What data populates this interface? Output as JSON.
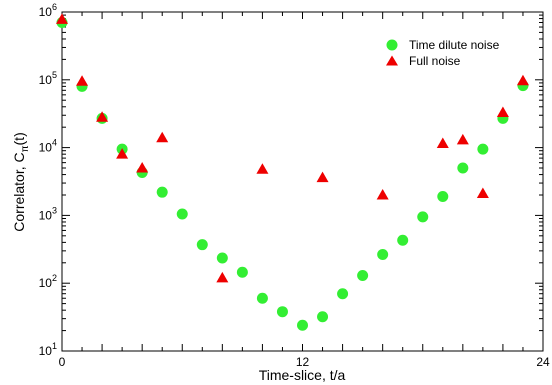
{
  "chart_data": {
    "type": "scatter",
    "xlabel": "Time-slice, t/a",
    "ylabel_prefix": "Correlator, C",
    "ylabel_subscript": "π",
    "ylabel_suffix": "(t)",
    "xlim": [
      0,
      24
    ],
    "ylim": [
      10,
      1000000
    ],
    "yscale": "log",
    "grid": false,
    "legend_position": "top-right",
    "x_ticks": [
      0,
      12,
      24
    ],
    "y_tick_labels": [
      {
        "base": "10",
        "exp": "1"
      },
      {
        "base": "10",
        "exp": "2"
      },
      {
        "base": "10",
        "exp": "3"
      },
      {
        "base": "10",
        "exp": "4"
      },
      {
        "base": "10",
        "exp": "5"
      },
      {
        "base": "10",
        "exp": "6"
      }
    ],
    "series": [
      {
        "name": "Time dilute noise",
        "marker": "circle",
        "color": "#33ee33",
        "points": [
          [
            0,
            700000
          ],
          [
            1,
            80000
          ],
          [
            2,
            27000
          ],
          [
            3,
            9500
          ],
          [
            4,
            4300
          ],
          [
            5,
            2200
          ],
          [
            6,
            1050
          ],
          [
            7,
            370
          ],
          [
            8,
            235
          ],
          [
            9,
            145
          ],
          [
            10,
            60
          ],
          [
            11,
            38
          ],
          [
            12,
            24
          ],
          [
            13,
            32
          ],
          [
            14,
            70
          ],
          [
            15,
            130
          ],
          [
            16,
            265
          ],
          [
            17,
            430
          ],
          [
            18,
            950
          ],
          [
            19,
            1900
          ],
          [
            20,
            5000
          ],
          [
            21,
            9500
          ],
          [
            22,
            27000
          ],
          [
            23,
            82000
          ]
        ]
      },
      {
        "name": "Full noise",
        "marker": "triangle",
        "color": "#ee0000",
        "points": [
          [
            0,
            780000
          ],
          [
            1,
            95000
          ],
          [
            2,
            28000
          ],
          [
            3,
            8000
          ],
          [
            4,
            5000
          ],
          [
            5,
            14000
          ],
          [
            8,
            120
          ],
          [
            10,
            4800
          ],
          [
            13,
            3600
          ],
          [
            16,
            2000
          ],
          [
            19,
            11500
          ],
          [
            20,
            13000
          ],
          [
            21,
            2100
          ],
          [
            22,
            33000
          ],
          [
            23,
            97000
          ]
        ]
      }
    ]
  }
}
